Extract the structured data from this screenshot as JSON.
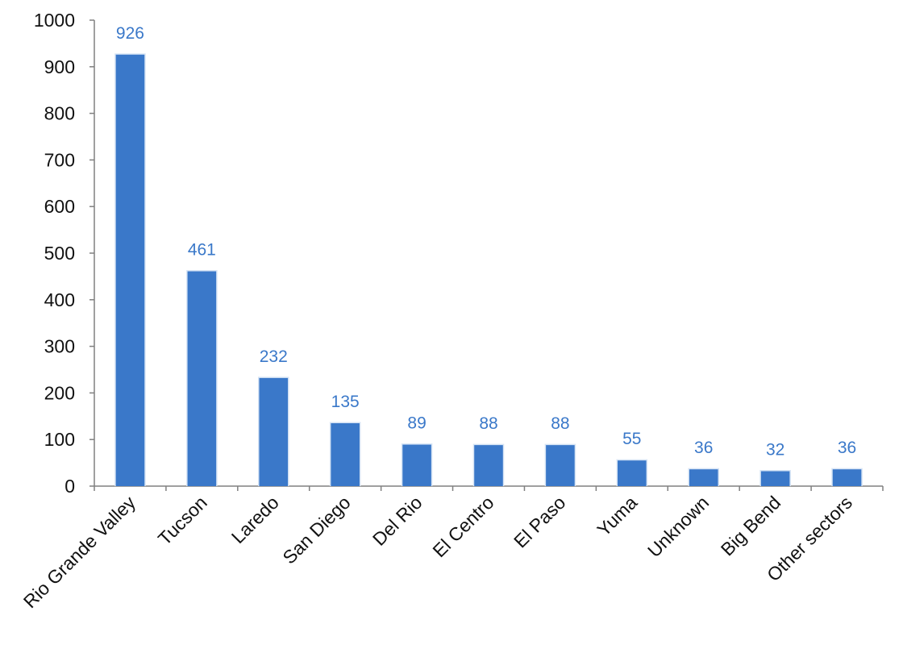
{
  "chart_data": {
    "type": "bar",
    "categories": [
      "Rio Grande Valley",
      "Tucson",
      "Laredo",
      "San Diego",
      "Del Rio",
      "El Centro",
      "El Paso",
      "Yuma",
      "Unknown",
      "Big Bend",
      "Other sectors"
    ],
    "values": [
      926,
      461,
      232,
      135,
      89,
      88,
      88,
      55,
      36,
      32,
      36
    ],
    "ylim": [
      0,
      1000
    ],
    "yticks": [
      0,
      100,
      200,
      300,
      400,
      500,
      600,
      700,
      800,
      900,
      1000
    ],
    "grid": false,
    "legend": "none",
    "bar_color": "#3a78c9",
    "label_color": "#3a78c9"
  }
}
